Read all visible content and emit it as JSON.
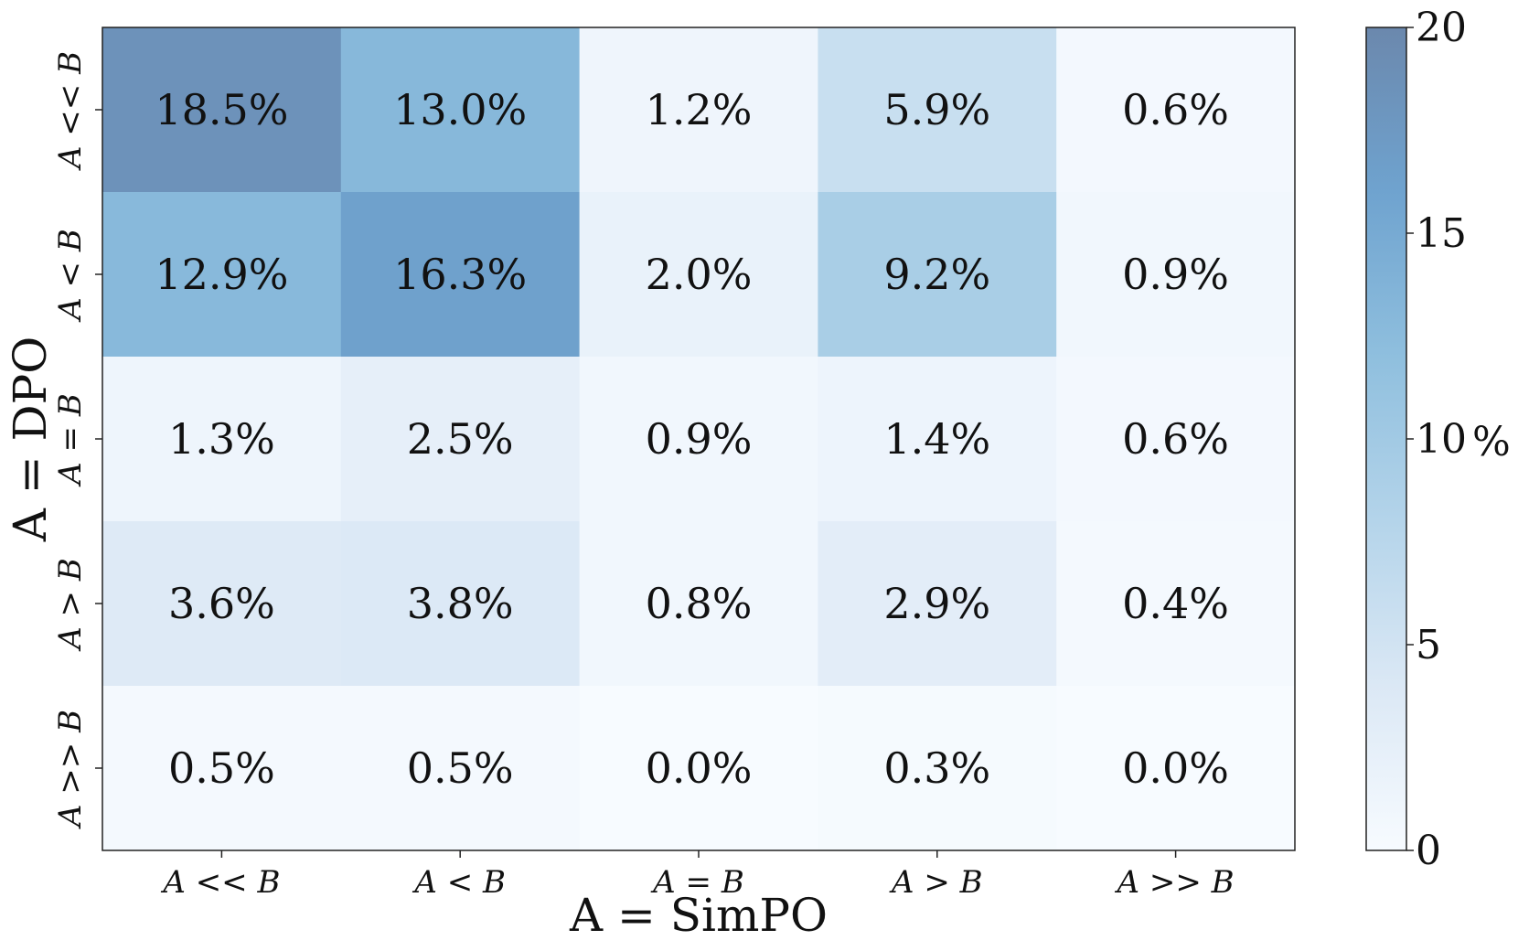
{
  "chart_data": {
    "type": "heatmap",
    "xlabel": "A = SimPO",
    "ylabel": "A = DPO",
    "x_categories": [
      "A << B",
      "A < B",
      "A = B",
      "A > B",
      "A >> B"
    ],
    "y_categories": [
      "A << B",
      "A < B",
      "A = B",
      "A > B",
      "A >> B"
    ],
    "values": [
      [
        18.5,
        13.0,
        1.2,
        5.9,
        0.6
      ],
      [
        12.9,
        16.3,
        2.0,
        9.2,
        0.9
      ],
      [
        1.3,
        2.5,
        0.9,
        1.4,
        0.6
      ],
      [
        3.6,
        3.8,
        0.8,
        2.9,
        0.4
      ],
      [
        0.5,
        0.5,
        0.0,
        0.3,
        0.0
      ]
    ],
    "cell_labels": [
      [
        "18.5%",
        "13.0%",
        "1.2%",
        "5.9%",
        "0.6%"
      ],
      [
        "12.9%",
        "16.3%",
        "2.0%",
        "9.2%",
        "0.9%"
      ],
      [
        "1.3%",
        "2.5%",
        "0.9%",
        "1.4%",
        "0.6%"
      ],
      [
        "3.6%",
        "3.8%",
        "0.8%",
        "2.9%",
        "0.4%"
      ],
      [
        "0.5%",
        "0.5%",
        "0.0%",
        "0.3%",
        "0.0%"
      ]
    ],
    "colorbar": {
      "label": "%",
      "range": [
        0,
        20
      ],
      "ticks": [
        0,
        5,
        10,
        15,
        20
      ],
      "tick_labels": [
        "0",
        "5",
        "10",
        "15",
        "20"
      ],
      "colormap": "Blues",
      "color_low": "#f7fbff",
      "color_high": "#6b88ad"
    }
  }
}
